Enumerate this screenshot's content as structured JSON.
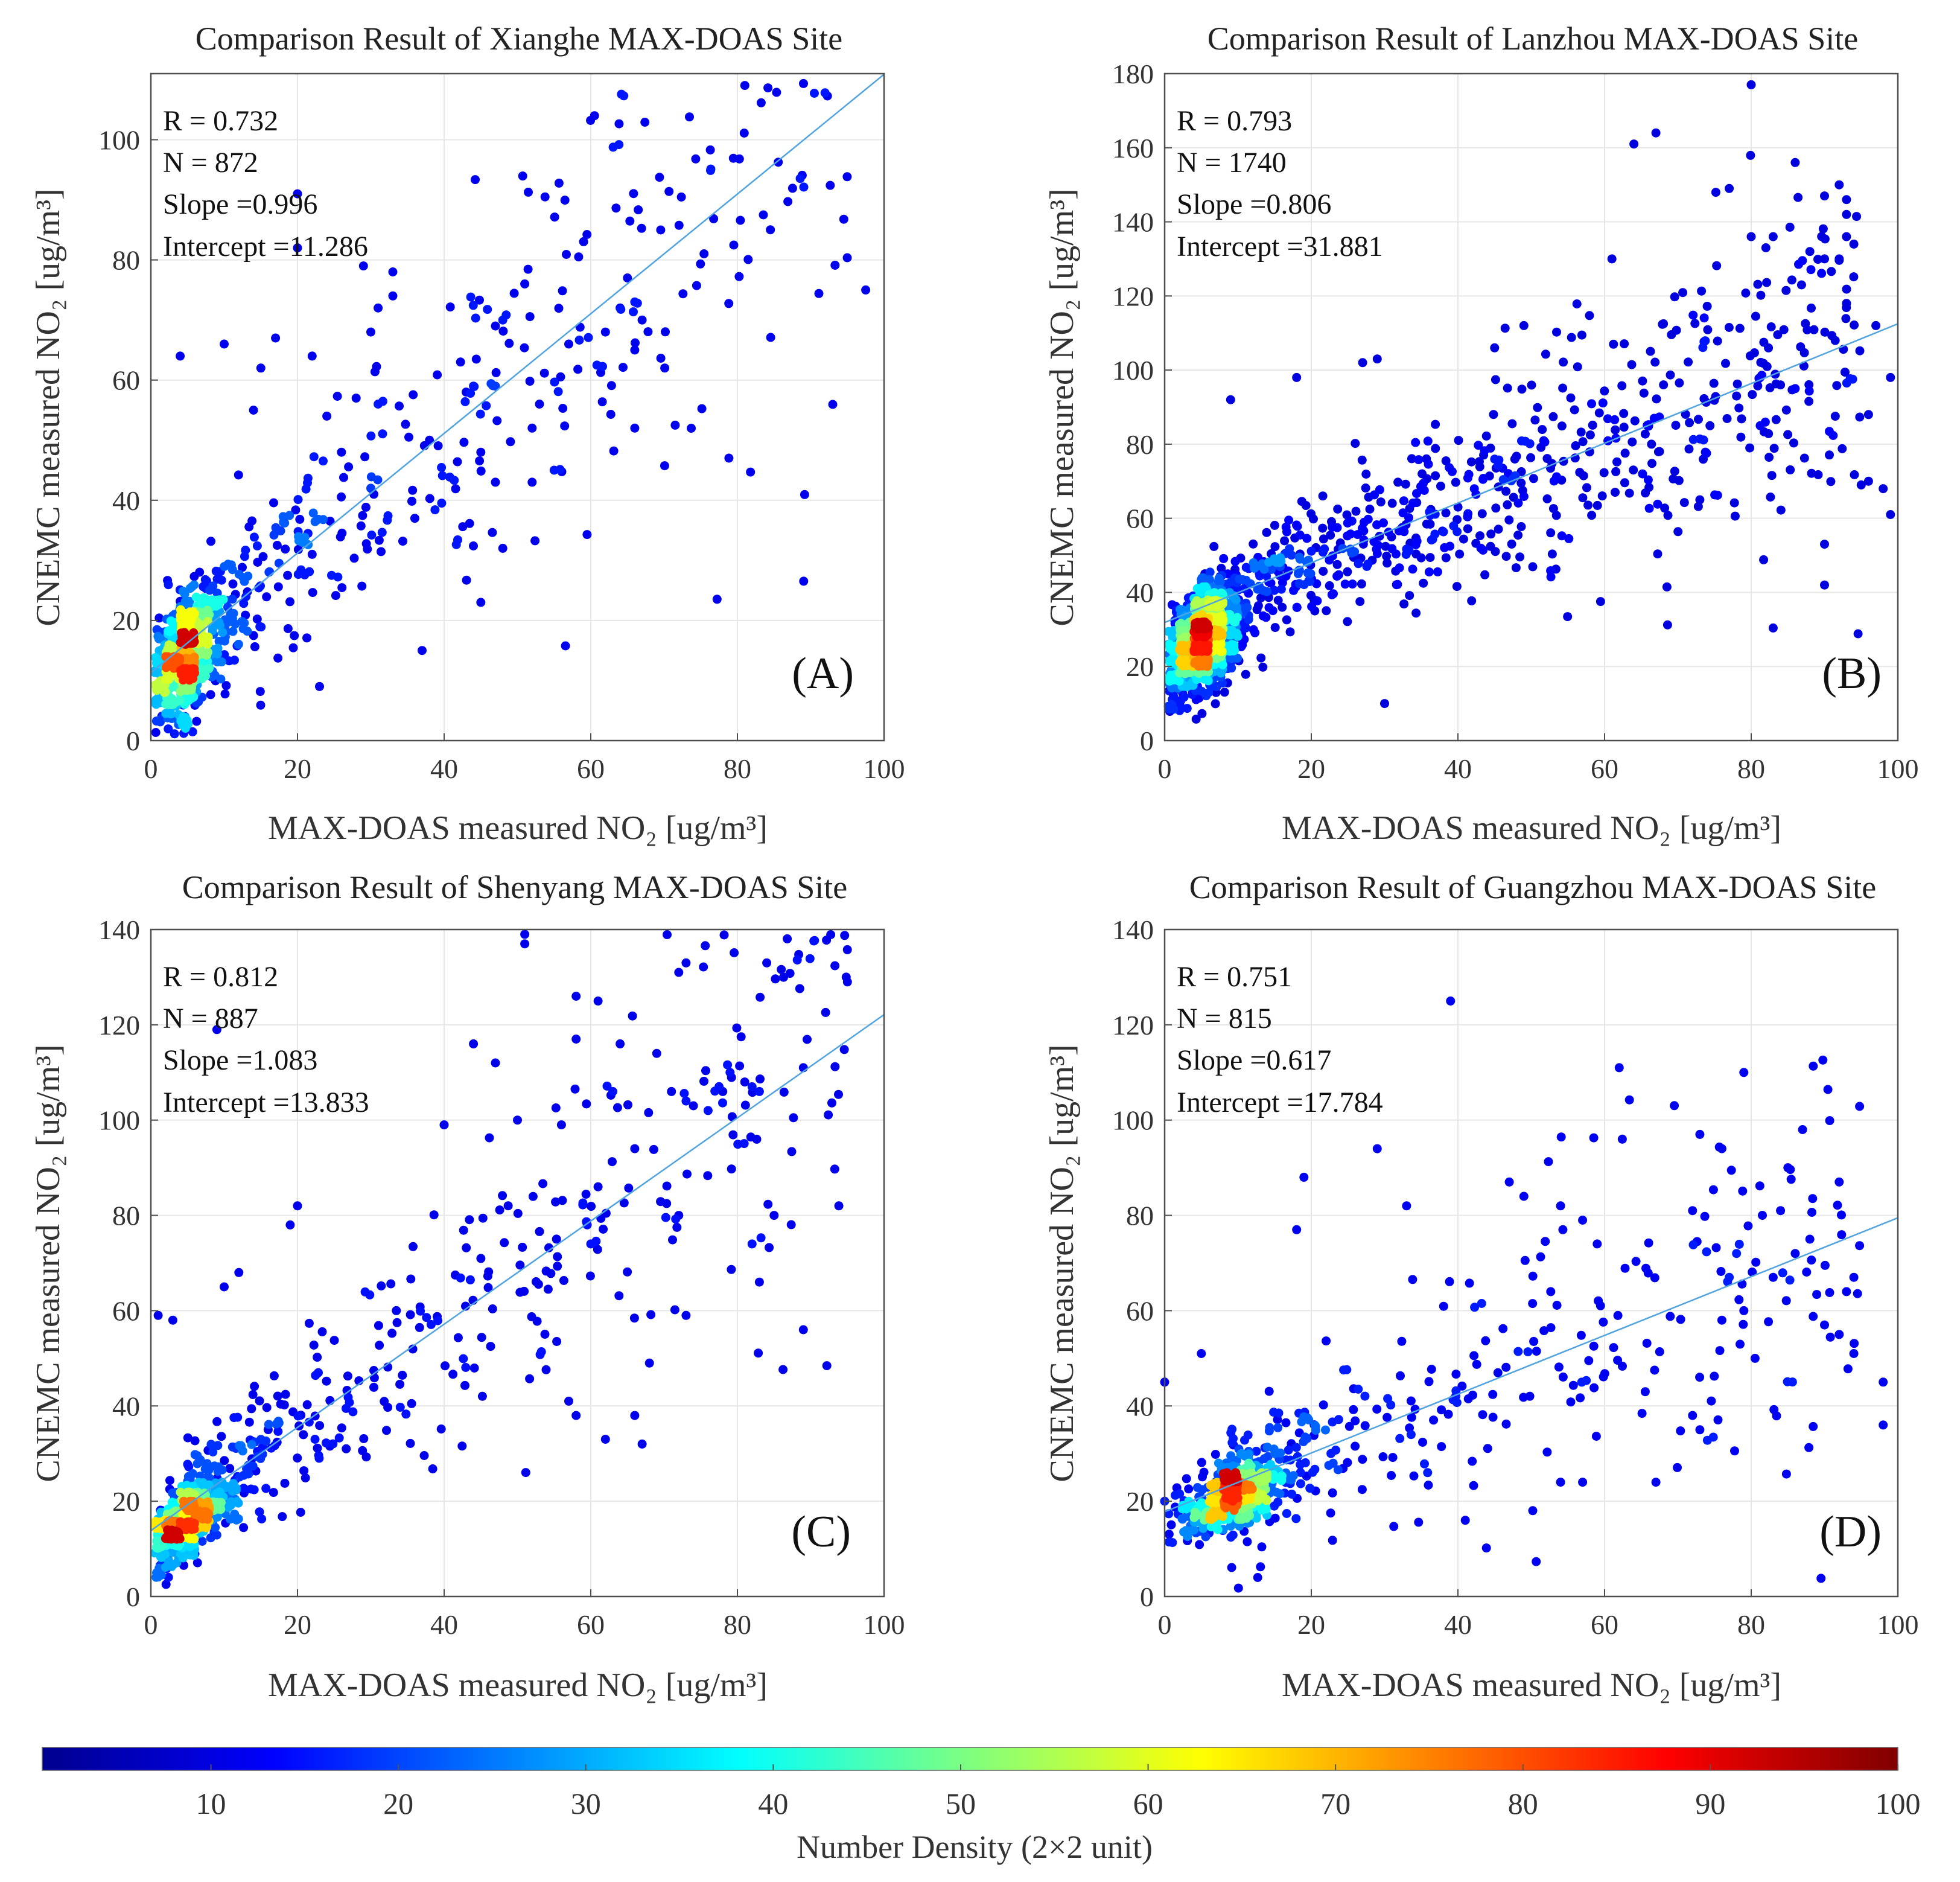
{
  "chart_data": [
    {
      "id": "A",
      "type": "scatter",
      "title": "Comparison Result of Xianghe MAX-DOAS Site",
      "xlabel": "MAX-DOAS measured NO₂  [ug/m³]",
      "ylabel": "CNEMC measured NO₂  [ug/m³]",
      "xlim": [
        0,
        100
      ],
      "ylim": [
        0,
        111
      ],
      "xticks": [
        0,
        20,
        40,
        60,
        80,
        100
      ],
      "yticks": [
        0,
        20,
        40,
        60,
        80,
        100
      ],
      "grid": true,
      "stats": [
        "R = 0.732",
        "N = 872",
        "Slope =0.996",
        "Intercept =11.286"
      ],
      "panel_label": "(A)",
      "fit": {
        "slope": 0.996,
        "intercept": 11.286
      },
      "n": 872,
      "cluster": {
        "x": 4.5,
        "y": 14,
        "sx": 2.5,
        "sy": 5
      },
      "points": [
        [
          97.5,
          75
        ],
        [
          65,
          77
        ],
        [
          62,
          68
        ],
        [
          64,
          72
        ],
        [
          66,
          73
        ],
        [
          67,
          70
        ],
        [
          66,
          65
        ],
        [
          66,
          52
        ],
        [
          57,
          66
        ],
        [
          51,
          76
        ],
        [
          48,
          70
        ],
        [
          47,
          69
        ],
        [
          47,
          59
        ],
        [
          44,
          59
        ],
        [
          43,
          58
        ],
        [
          45,
          48
        ],
        [
          47,
          43
        ],
        [
          48,
          32
        ],
        [
          45,
          23
        ],
        [
          52,
          52
        ],
        [
          53,
          56
        ],
        [
          52,
          43
        ],
        [
          55,
          45
        ],
        [
          20,
          91
        ],
        [
          20,
          82
        ],
        [
          29,
          79
        ],
        [
          33,
          78
        ],
        [
          31,
          72
        ],
        [
          30,
          68
        ],
        [
          33,
          74
        ],
        [
          37,
          15
        ],
        [
          38,
          50
        ],
        [
          36,
          37
        ],
        [
          23,
          9
        ],
        [
          4,
          64
        ],
        [
          10,
          66
        ],
        [
          17,
          67
        ],
        [
          22,
          64
        ],
        [
          15,
          62
        ],
        [
          14,
          55
        ],
        [
          24,
          54
        ],
        [
          28,
          57
        ],
        [
          31,
          56
        ],
        [
          26,
          48
        ],
        [
          30,
          42
        ]
      ]
    },
    {
      "id": "B",
      "type": "scatter",
      "title": "Comparison Result of Lanzhou MAX-DOAS Site",
      "xlabel": "MAX-DOAS measured NO₂  [ug/m³]",
      "ylabel": "CNEMC measured NO₂  [ug/m³]",
      "xlim": [
        0,
        100
      ],
      "ylim": [
        0,
        180
      ],
      "xticks": [
        0,
        20,
        40,
        60,
        80,
        100
      ],
      "yticks": [
        0,
        20,
        40,
        60,
        80,
        100,
        120,
        140,
        160,
        180
      ],
      "grid": true,
      "stats": [
        "R = 0.793",
        "N = 1740",
        "Slope =0.806",
        "Intercept =31.881"
      ],
      "panel_label": "(B)",
      "fit": {
        "slope": 0.806,
        "intercept": 31.881
      },
      "n": 1740,
      "cluster": {
        "x": 5,
        "y": 26,
        "sx": 2.5,
        "sy": 6
      },
      "points": [
        [
          80,
          177
        ],
        [
          67,
          164
        ],
        [
          64,
          161
        ],
        [
          86,
          156
        ],
        [
          77,
          149
        ],
        [
          92,
          150
        ],
        [
          93,
          146
        ],
        [
          93,
          142
        ],
        [
          90,
          147
        ],
        [
          93,
          136
        ],
        [
          92,
          130
        ],
        [
          94,
          134
        ],
        [
          80,
          136
        ],
        [
          83,
          136
        ],
        [
          82,
          133
        ],
        [
          88,
          132
        ],
        [
          90,
          130
        ],
        [
          61,
          130
        ],
        [
          99,
          61
        ],
        [
          99,
          98
        ],
        [
          97,
          112
        ],
        [
          96,
          88
        ],
        [
          96,
          70
        ],
        [
          93,
          118
        ],
        [
          90,
          42
        ],
        [
          90,
          53
        ],
        [
          30,
          10
        ],
        [
          9,
          92
        ],
        [
          18,
          98
        ],
        [
          29,
          103
        ],
        [
          27,
          102
        ],
        [
          49,
          112
        ],
        [
          45,
          106
        ],
        [
          84,
          96
        ],
        [
          78,
          93
        ],
        [
          86,
          95
        ],
        [
          73,
          65
        ],
        [
          95,
          69
        ],
        [
          98,
          68
        ]
      ]
    },
    {
      "id": "C",
      "type": "scatter",
      "title": "Comparison Result of Shenyang MAX-DOAS Site",
      "xlabel": "MAX-DOAS measured NO₂  [ug/m³]",
      "ylabel": "CNEMC measured NO₂  [ug/m³]",
      "xlim": [
        0,
        100
      ],
      "ylim": [
        0,
        140
      ],
      "xticks": [
        0,
        20,
        40,
        60,
        80,
        100
      ],
      "yticks": [
        0,
        20,
        40,
        60,
        80,
        100,
        120,
        140
      ],
      "grid": true,
      "stats": [
        "R = 0.812",
        "N = 887",
        "Slope =1.083",
        "Intercept =13.833"
      ],
      "panel_label": "(C)",
      "fit": {
        "slope": 1.083,
        "intercept": 13.833
      },
      "n": 887,
      "cluster": {
        "x": 5,
        "y": 16,
        "sx": 3,
        "sy": 3.5
      },
      "points": [
        [
          51,
          139
        ],
        [
          51,
          137
        ],
        [
          95,
          129
        ],
        [
          73,
          133
        ],
        [
          84,
          133
        ],
        [
          72,
          131
        ],
        [
          58,
          126
        ],
        [
          61,
          125
        ],
        [
          9,
          119
        ],
        [
          58,
          117
        ],
        [
          64,
          116
        ],
        [
          44,
          116
        ],
        [
          89,
          111
        ],
        [
          79,
          110
        ],
        [
          81,
          108
        ],
        [
          82,
          107
        ],
        [
          83,
          106
        ],
        [
          78,
          106
        ],
        [
          74,
          103
        ],
        [
          73,
          104
        ],
        [
          76,
          102
        ],
        [
          69,
          114
        ],
        [
          71,
          106
        ],
        [
          66,
          94
        ],
        [
          50,
          100
        ],
        [
          56,
          99
        ],
        [
          72,
          80
        ],
        [
          85,
          80
        ],
        [
          82,
          74
        ],
        [
          83,
          66
        ],
        [
          89,
          56
        ],
        [
          73,
          59
        ],
        [
          68,
          49
        ],
        [
          62,
          33
        ],
        [
          67,
          32
        ],
        [
          66,
          38
        ],
        [
          58,
          38
        ],
        [
          57,
          41
        ],
        [
          1,
          59
        ],
        [
          3,
          58
        ],
        [
          10,
          65
        ],
        [
          12,
          68
        ],
        [
          20,
          82
        ],
        [
          19,
          78
        ],
        [
          40,
          99
        ],
        [
          47,
          112
        ],
        [
          63,
          106
        ],
        [
          61,
          86
        ],
        [
          60,
          74
        ]
      ]
    },
    {
      "id": "D",
      "type": "scatter",
      "title": "Comparison Result of Guangzhou MAX-DOAS Site",
      "xlabel": "MAX-DOAS measured NO₂  [ug/m³]",
      "ylabel": "CNEMC measured NO₂  [ug/m³]",
      "xlim": [
        0,
        100
      ],
      "ylim": [
        0,
        140
      ],
      "xticks": [
        0,
        20,
        40,
        60,
        80,
        100
      ],
      "yticks": [
        0,
        20,
        40,
        60,
        80,
        100,
        120,
        140
      ],
      "grid": true,
      "stats": [
        "R = 0.751",
        "N = 815",
        "Slope =0.617",
        "Intercept =17.784"
      ],
      "panel_label": "(D)",
      "fit": {
        "slope": 0.617,
        "intercept": 17.784
      },
      "n": 815,
      "cluster": {
        "x": 9,
        "y": 21,
        "sx": 3.5,
        "sy": 3.5
      },
      "points": [
        [
          39,
          125
        ],
        [
          62,
          111
        ],
        [
          79,
          110
        ],
        [
          87,
          98
        ],
        [
          73,
          97
        ],
        [
          76,
          94
        ],
        [
          85,
          90
        ],
        [
          29,
          94
        ],
        [
          19,
          88
        ],
        [
          92,
          87
        ],
        [
          47,
          87
        ],
        [
          49,
          84
        ],
        [
          33,
          82
        ],
        [
          84,
          81
        ],
        [
          54,
          82
        ],
        [
          72,
          81
        ],
        [
          18,
          77
        ],
        [
          57,
          79
        ],
        [
          59,
          74
        ],
        [
          78,
          72
        ],
        [
          86,
          72
        ],
        [
          88,
          75
        ],
        [
          77,
          67
        ],
        [
          83,
          67
        ],
        [
          94,
          67
        ],
        [
          79,
          60
        ],
        [
          90,
          57
        ],
        [
          92,
          55
        ],
        [
          94,
          51
        ],
        [
          76,
          58
        ],
        [
          72,
          38
        ],
        [
          73,
          35
        ],
        [
          67,
          24
        ],
        [
          57,
          24
        ],
        [
          54,
          24
        ],
        [
          41,
          16
        ],
        [
          98,
          45
        ],
        [
          98,
          36
        ],
        [
          93,
          64
        ],
        [
          0,
          45
        ],
        [
          0,
          20
        ],
        [
          5,
          51
        ]
      ]
    }
  ],
  "colorbar": {
    "label": "Number Density  (2×2 unit)",
    "ticks": [
      "10",
      "20",
      "30",
      "40",
      "50",
      "60",
      "70",
      "80",
      "90",
      "100"
    ],
    "range": [
      1,
      100
    ]
  }
}
